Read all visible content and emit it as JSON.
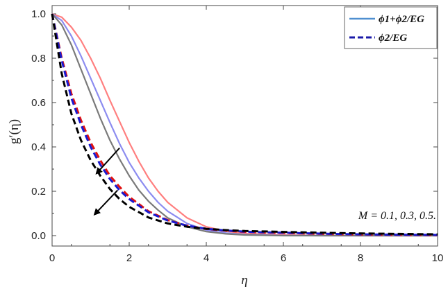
{
  "chart_data": {
    "type": "line",
    "title": "",
    "xlabel": "η",
    "ylabel": "g′(η)",
    "xlim": [
      0,
      10
    ],
    "ylim": [
      0,
      1.05
    ],
    "x_ticks": [
      0,
      2,
      4,
      6,
      8,
      10
    ],
    "y_ticks": [
      0.0,
      0.2,
      0.4,
      0.6,
      0.8,
      1.0
    ],
    "x_tick_labels": [
      "0",
      "2",
      "4",
      "6",
      "8",
      "10"
    ],
    "y_tick_labels": [
      "0.0",
      "0.2",
      "0.4",
      "0.6",
      "0.8",
      "1.0"
    ],
    "grid": false,
    "legend": {
      "position": "top-right",
      "entries": [
        {
          "label": "ϕ1+ϕ2/EG",
          "style": "solid",
          "color": "#4f8fd0"
        },
        {
          "label": "ϕ2/EG",
          "style": "dashed",
          "color": "#1a1aa8"
        }
      ]
    },
    "annotation": "M = 0.1, 0.3, 0.5.",
    "series": [
      {
        "group": "ϕ1+ϕ2/EG",
        "M": 0.1,
        "style": "solid",
        "color": "#ff7f7f",
        "x": [
          0,
          0.25,
          0.5,
          0.75,
          1,
          1.25,
          1.5,
          1.75,
          2,
          2.25,
          2.5,
          2.75,
          3,
          3.5,
          4,
          4.5,
          5,
          6,
          7,
          8,
          9,
          10
        ],
        "y": [
          1.0,
          0.985,
          0.94,
          0.88,
          0.8,
          0.71,
          0.61,
          0.515,
          0.42,
          0.335,
          0.26,
          0.2,
          0.15,
          0.08,
          0.04,
          0.02,
          0.01,
          0.003,
          0.001,
          0.0,
          0.0,
          0.0
        ]
      },
      {
        "group": "ϕ1+ϕ2/EG",
        "M": 0.3,
        "style": "solid",
        "color": "#8c8cf0",
        "x": [
          0,
          0.25,
          0.5,
          0.75,
          1,
          1.25,
          1.5,
          1.75,
          2,
          2.25,
          2.5,
          2.75,
          3,
          3.5,
          4,
          4.5,
          5,
          6,
          7,
          8,
          9,
          10
        ],
        "y": [
          1.0,
          0.97,
          0.9,
          0.81,
          0.71,
          0.61,
          0.51,
          0.415,
          0.33,
          0.26,
          0.2,
          0.15,
          0.11,
          0.055,
          0.025,
          0.012,
          0.005,
          0.001,
          0.0,
          0.0,
          0.0,
          0.0
        ]
      },
      {
        "group": "ϕ1+ϕ2/EG",
        "M": 0.5,
        "style": "solid",
        "color": "#7a7a7a",
        "x": [
          0,
          0.25,
          0.5,
          0.75,
          1,
          1.25,
          1.5,
          1.75,
          2,
          2.25,
          2.5,
          2.75,
          3,
          3.5,
          4,
          4.5,
          5,
          6,
          7,
          8,
          9,
          10
        ],
        "y": [
          1.0,
          0.95,
          0.86,
          0.75,
          0.64,
          0.53,
          0.43,
          0.345,
          0.27,
          0.205,
          0.155,
          0.115,
          0.08,
          0.04,
          0.018,
          0.008,
          0.003,
          0.0,
          0.0,
          0.0,
          0.0,
          0.0
        ]
      },
      {
        "group": "ϕ2/EG",
        "M": 0.1,
        "style": "dashed",
        "color": "#e01010",
        "x": [
          0,
          0.25,
          0.5,
          0.75,
          1,
          1.25,
          1.5,
          1.75,
          2,
          2.5,
          3,
          3.5,
          4,
          4.5,
          5,
          5.5,
          6,
          7,
          8,
          9,
          10
        ],
        "y": [
          1.0,
          0.8,
          0.64,
          0.52,
          0.42,
          0.34,
          0.27,
          0.22,
          0.175,
          0.11,
          0.07,
          0.045,
          0.03,
          0.022,
          0.017,
          0.014,
          0.012,
          0.008,
          0.005,
          0.003,
          0.002
        ]
      },
      {
        "group": "ϕ2/EG",
        "M": 0.3,
        "style": "dashed",
        "color": "#1a1ad0",
        "x": [
          0,
          0.25,
          0.5,
          0.75,
          1,
          1.25,
          1.5,
          1.75,
          2,
          2.5,
          3,
          3.5,
          4,
          4.5,
          5,
          5.5,
          6,
          7,
          8,
          9,
          10
        ],
        "y": [
          1.0,
          0.79,
          0.62,
          0.5,
          0.4,
          0.32,
          0.255,
          0.205,
          0.165,
          0.105,
          0.068,
          0.045,
          0.031,
          0.023,
          0.018,
          0.015,
          0.013,
          0.009,
          0.006,
          0.004,
          0.003
        ]
      },
      {
        "group": "ϕ2/EG",
        "M": 0.5,
        "style": "dashed",
        "color": "#000000",
        "x": [
          0,
          0.25,
          0.5,
          0.75,
          1,
          1.25,
          1.5,
          1.75,
          2,
          2.5,
          3,
          3.5,
          4,
          4.5,
          5,
          5.5,
          6,
          7,
          8,
          9,
          10
        ],
        "y": [
          1.0,
          0.73,
          0.55,
          0.43,
          0.34,
          0.27,
          0.21,
          0.165,
          0.13,
          0.082,
          0.055,
          0.04,
          0.031,
          0.025,
          0.021,
          0.019,
          0.017,
          0.013,
          0.01,
          0.008,
          0.006
        ]
      }
    ],
    "arrows": [
      {
        "from": [
          1.75,
          0.395
        ],
        "to": [
          1.15,
          0.28
        ]
      },
      {
        "from": [
          1.7,
          0.205
        ],
        "to": [
          1.1,
          0.095
        ]
      }
    ]
  }
}
